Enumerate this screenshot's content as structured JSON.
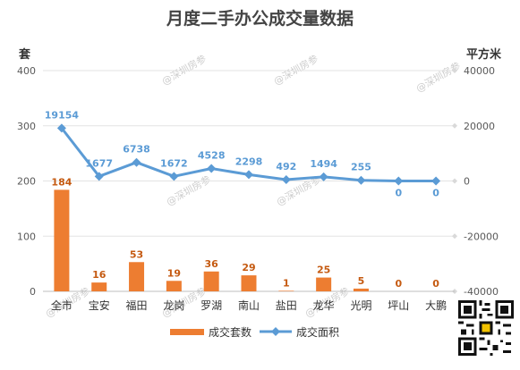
{
  "title": "月度二手办公成交量数据",
  "left_unit": "套",
  "right_unit": "平方米",
  "watermark_text": "@深圳房参",
  "chart_data": {
    "type": "bar",
    "title": "月度二手办公成交量数据",
    "categories": [
      "全市",
      "宝安",
      "福田",
      "龙岗",
      "罗湖",
      "南山",
      "盐田",
      "龙华",
      "光明",
      "坪山",
      "大鹏"
    ],
    "series": [
      {
        "name": "成交套数",
        "type": "bar",
        "axis": "left",
        "color": "#ed7d31",
        "values": [
          184,
          16,
          53,
          19,
          36,
          29,
          1,
          25,
          5,
          0,
          0
        ]
      },
      {
        "name": "成交面积",
        "type": "line",
        "axis": "right",
        "color": "#5b9bd5",
        "values": [
          19154,
          1677,
          6738,
          1672,
          4528,
          2298,
          492,
          1494,
          255,
          0,
          0
        ]
      }
    ],
    "y_left": {
      "label": "套",
      "range": [
        0,
        400
      ],
      "ticks": [
        "0",
        "100",
        "200",
        "300",
        "400"
      ]
    },
    "y_right": {
      "label": "平方米",
      "range": [
        -40000,
        40000
      ],
      "ticks": [
        "-40000",
        "-20000",
        "0",
        "20000",
        "40000"
      ]
    },
    "grid": true,
    "legend_placement": "bottom"
  }
}
